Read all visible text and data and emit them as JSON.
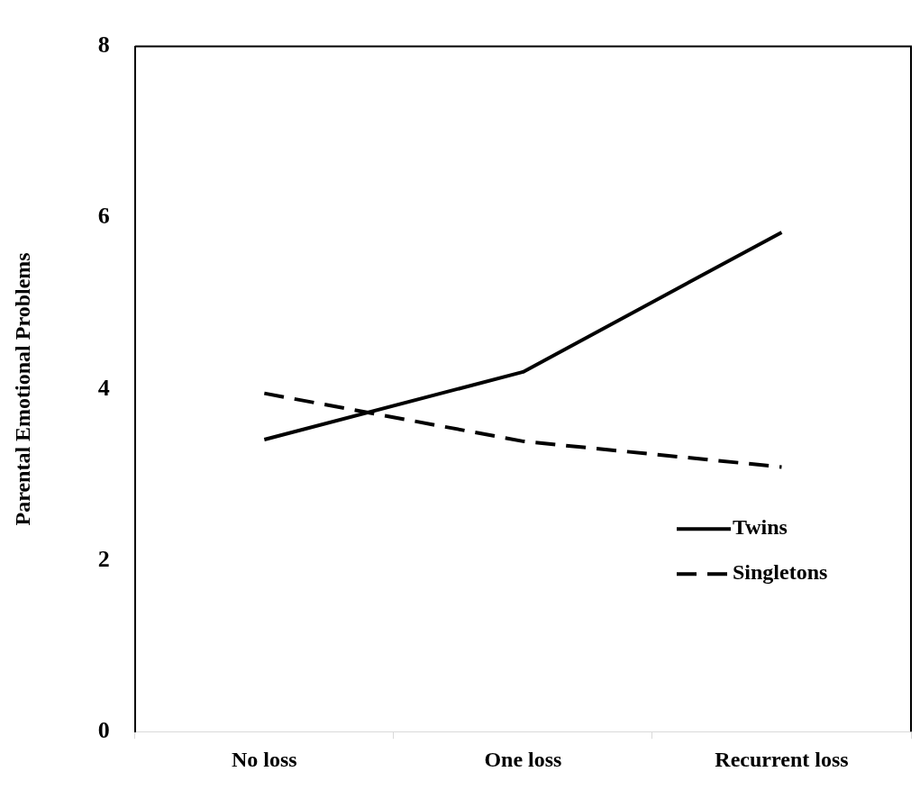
{
  "chart_data": {
    "type": "line",
    "ylabel": "Parental Emotional Problems",
    "categories": [
      "No loss",
      "One loss",
      "Recurrent loss"
    ],
    "series": [
      {
        "name": "Twins",
        "color": "#000000",
        "values": [
          3.41,
          4.2,
          5.83
        ],
        "line_style": "solid"
      },
      {
        "name": "Singletons",
        "color": "#000000",
        "values": [
          3.95,
          3.39,
          3.09
        ],
        "line_style": "dashed"
      }
    ],
    "ylim": [
      0,
      8
    ],
    "yticks": [
      0,
      2,
      4,
      6,
      8
    ],
    "grid": false,
    "legend": "bottom right",
    "marker": "none"
  }
}
